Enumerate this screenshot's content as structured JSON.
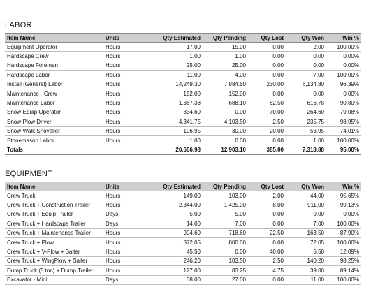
{
  "columns": [
    "Item Name",
    "Units",
    "Qty Estimated",
    "Qty Pending",
    "Qty Lost",
    "Qty Won",
    "Win %"
  ],
  "labor": {
    "title": "LABOR",
    "rows": [
      [
        "Equipment Operator",
        "Hours",
        "17.00",
        "15.00",
        "0.00",
        "2.00",
        "100.00%"
      ],
      [
        "Hardscape Crew",
        "Hours",
        "1.00",
        "1.00",
        "0.00",
        "0.00",
        "0.00%"
      ],
      [
        "Hardscape Foreman",
        "Hours",
        "25.00",
        "25.00",
        "0.00",
        "0.00",
        "0.00%"
      ],
      [
        "Hardscape Labor",
        "Hours",
        "11.00",
        "4.00",
        "0.00",
        "7.00",
        "100.00%"
      ],
      [
        "Install (General) Labor",
        "Hours",
        "14,249.30",
        "7,884.50",
        "230.00",
        "6,134.80",
        "96.39%"
      ],
      [
        "Maintenance - Crew",
        "Hours",
        "152.00",
        "152.00",
        "0.00",
        "0.00",
        "0.00%"
      ],
      [
        "Maintenance Labor",
        "Hours",
        "1,367.38",
        "688.10",
        "62.50",
        "616.78",
        "90.80%"
      ],
      [
        "Snow-Equip Operator",
        "Hours",
        "334.60",
        "0.00",
        "70.00",
        "264.60",
        "79.08%"
      ],
      [
        "Snow-Plow Driver",
        "Hours",
        "4,341.75",
        "4,103.50",
        "2.50",
        "235.75",
        "98.95%"
      ],
      [
        "Snow-Walk Shoveller",
        "Hours",
        "106.95",
        "30.00",
        "20.00",
        "56.95",
        "74.01%"
      ],
      [
        "Stonemason Labor",
        "Hours",
        "1.00",
        "0.00",
        "0.00",
        "1.00",
        "100.00%"
      ]
    ],
    "totals": [
      "Totals",
      "",
      "20,606.98",
      "12,903.10",
      "385.00",
      "7,318.88",
      "95.00%"
    ]
  },
  "equipment": {
    "title": "EQUIPMENT",
    "rows": [
      [
        "Crew Truck",
        "Hours",
        "149.00",
        "103.00",
        "2.00",
        "44.00",
        "95.65%"
      ],
      [
        "Crew Truck + Construction Trailer",
        "Hours",
        "2,344.00",
        "1,425.00",
        "8.00",
        "911.00",
        "99.13%"
      ],
      [
        "Crew Truck + Equip Trailer",
        "Days",
        "5.00",
        "5.00",
        "0.00",
        "0.00",
        "0.00%"
      ],
      [
        "Crew Truck + Hardscape Trailer",
        "Days",
        "14.00",
        "7.00",
        "0.00",
        "7.00",
        "100.00%"
      ],
      [
        "Crew Truck + Maintenance Trailer",
        "Hours",
        "904.60",
        "718.60",
        "22.50",
        "163.50",
        "87.90%"
      ],
      [
        "Crew Truck + Plow",
        "Hours",
        "872.05",
        "800.00",
        "0.00",
        "72.05",
        "100.00%"
      ],
      [
        "Crew Truck + V-Plow + Salter",
        "Hours",
        "45.50",
        "0.00",
        "40.00",
        "5.50",
        "12.09%"
      ],
      [
        "Crew Truck + WingPlow + Salter",
        "Hours",
        "246.20",
        "103.50",
        "2.50",
        "140.20",
        "98.25%"
      ],
      [
        "Dump Truck (5 ton) + Dump Trailer",
        "Hours",
        "127.00",
        "83.25",
        "4.75",
        "39.00",
        "89.14%"
      ],
      [
        "Excavator - Mini",
        "Days",
        "38.00",
        "27.00",
        "0.00",
        "11.00",
        "100.00%"
      ]
    ]
  }
}
